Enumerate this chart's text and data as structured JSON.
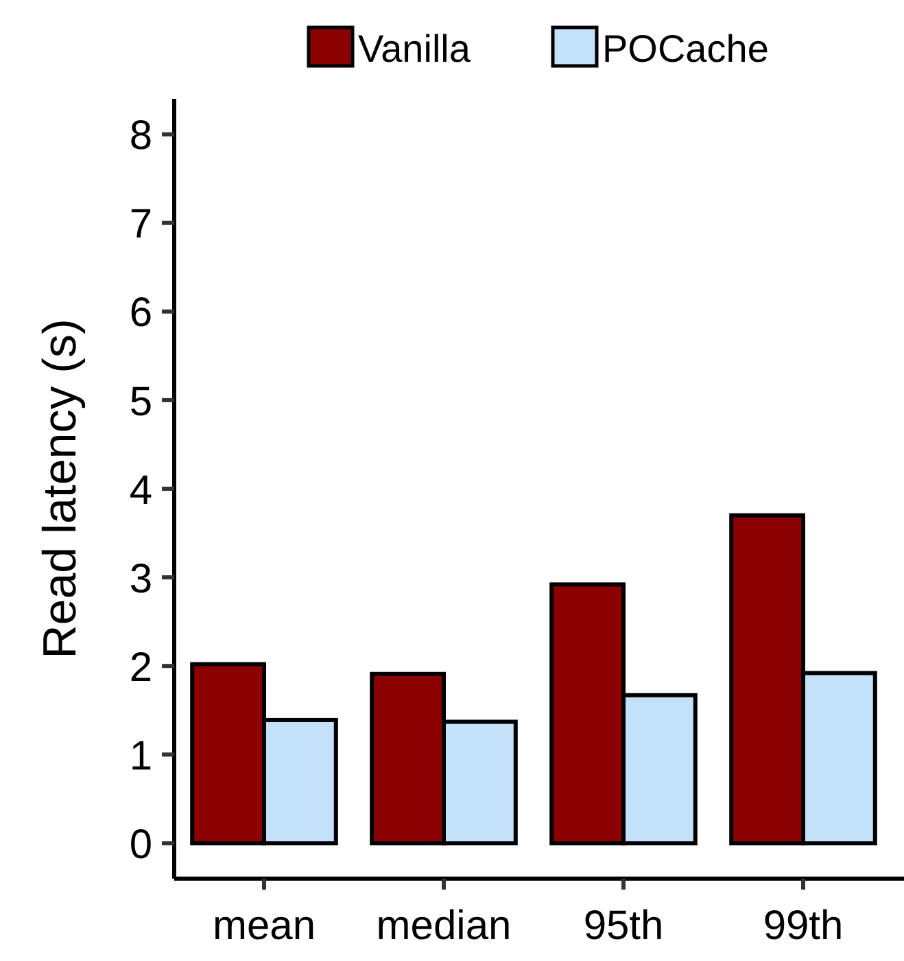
{
  "chart_data": {
    "type": "bar",
    "categories": [
      "mean",
      "median",
      "95th",
      "99th"
    ],
    "ylabel": "Read latency (s)",
    "ylim": [
      -0.4,
      8.4
    ],
    "yticks": [
      0,
      1,
      2,
      3,
      4,
      5,
      6,
      7,
      8
    ],
    "legend": "top",
    "series": [
      {
        "name": "Vanilla",
        "color": "#8b0000",
        "values": [
          2.02,
          1.91,
          2.92,
          3.7
        ]
      },
      {
        "name": "POCache",
        "color": "#c3e2fa",
        "values": [
          1.39,
          1.37,
          1.67,
          1.92
        ]
      }
    ]
  }
}
